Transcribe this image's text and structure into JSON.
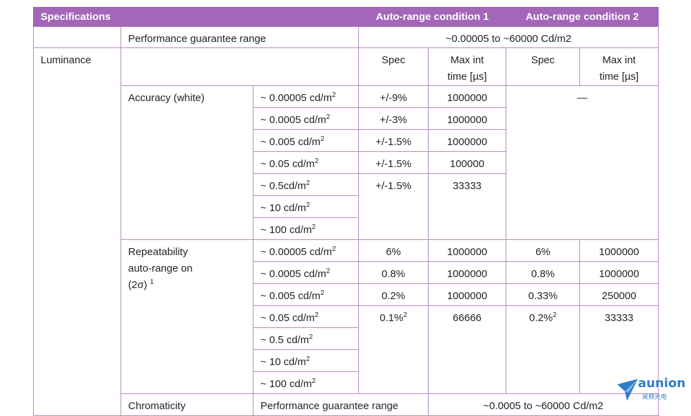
{
  "header": {
    "col1": "Specifications",
    "col2": "Auto-range condition 1",
    "col3": "Auto-range condition 2"
  },
  "guarantee": {
    "label": "Performance guarantee range",
    "value": "~0.00005 to ~60000 Cd/m2"
  },
  "luminance": {
    "label": "Luminance",
    "subheaders": {
      "spec1": "Spec",
      "max1_line1": "Max int",
      "max1_line2": "time [µs]",
      "spec2": "Spec",
      "max2_line1": "Max int",
      "max2_line2": "time [µs]"
    }
  },
  "accuracy": {
    "label": "Accuracy (white)",
    "dash": "—",
    "rows": [
      {
        "range": "~ 0.00005 cd/m",
        "spec1": "+/-9%",
        "max1": "1000000"
      },
      {
        "range": "~ 0.0005 cd/m",
        "spec1": "+/-3%",
        "max1": "1000000"
      },
      {
        "range": "~ 0.005 cd/m",
        "spec1": "+/-1.5%",
        "max1": "1000000"
      },
      {
        "range": "~ 0.05 cd/m",
        "spec1": "+/-1.5%",
        "max1": "100000"
      },
      {
        "range": "~ 0.5cd/m",
        "spec1": "+/-1.5%",
        "max1": "33333"
      },
      {
        "range": "~ 10 cd/m"
      },
      {
        "range": "~ 100 cd/m"
      }
    ]
  },
  "repeatability": {
    "label_line1": "Repeatability",
    "label_line2": "auto-range on",
    "label_line3": "(2σ)",
    "label_sup": "1",
    "rows": [
      {
        "range": "~ 0.00005 cd/m",
        "spec1": "6%",
        "max1": "1000000",
        "spec2": "6%",
        "max2": "1000000"
      },
      {
        "range": "~ 0.0005 cd/m",
        "spec1": "0.8%",
        "max1": "1000000",
        "spec2": "0.8%",
        "max2": "1000000"
      },
      {
        "range": "~ 0.005 cd/m",
        "spec1": "0.2%",
        "max1": "1000000",
        "spec2": "0.33%",
        "max2": "250000"
      },
      {
        "range": "~ 0.05 cd/m",
        "spec1": "0.1%",
        "spec1_sup": "2",
        "max1": "66666",
        "spec2": "0.2%",
        "spec2_sup": "2",
        "max2": "33333"
      },
      {
        "range": "~ 0.5 cd/m"
      },
      {
        "range": "~ 10 cd/m"
      },
      {
        "range": "~ 100 cd/m"
      }
    ]
  },
  "unit_sup": "2",
  "bottom": {
    "label": "Chromaticity",
    "sub": "Performance guarantee range",
    "value": "~0.0005 to ~60000 Cd/m2"
  },
  "logo": {
    "brand": "aunion",
    "sub": "昊频光电",
    "icon": "paper-plane-icon",
    "color": "#2f7dc9"
  },
  "colors": {
    "header_bg": "#a366b8",
    "border": "#b48ac2"
  }
}
